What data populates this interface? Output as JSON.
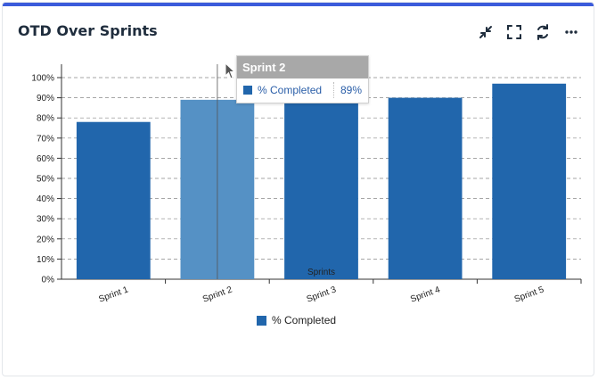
{
  "widget": {
    "title": "OTD Over Sprints",
    "accent": "#3b5bdb",
    "tools": [
      {
        "name": "collapse-icon",
        "label": "collapse"
      },
      {
        "name": "fullscreen-icon",
        "label": "fullscreen"
      },
      {
        "name": "refresh-icon",
        "label": "refresh"
      },
      {
        "name": "more-icon",
        "label": "more"
      }
    ]
  },
  "chart_data": {
    "type": "bar",
    "categories": [
      "Sprint 1",
      "Sprint 2",
      "Sprint 3",
      "Sprint 4",
      "Sprint 5"
    ],
    "series": [
      {
        "name": "% Completed",
        "values": [
          78,
          89,
          90,
          90,
          97
        ],
        "color": "#2166ac",
        "highlight_color": "#5591c5"
      }
    ],
    "xlabel": "Sprints",
    "ylabel": "",
    "ylim": [
      0,
      100
    ],
    "yticks": [
      "0%",
      "10%",
      "20%",
      "30%",
      "40%",
      "50%",
      "60%",
      "70%",
      "80%",
      "90%",
      "100%"
    ],
    "grid": true,
    "legend": "bottom-center",
    "highlighted_index": 1
  },
  "tooltip": {
    "title": "Sprint 2",
    "label": "% Completed",
    "value": "89%"
  },
  "legend": {
    "label": "% Completed"
  }
}
